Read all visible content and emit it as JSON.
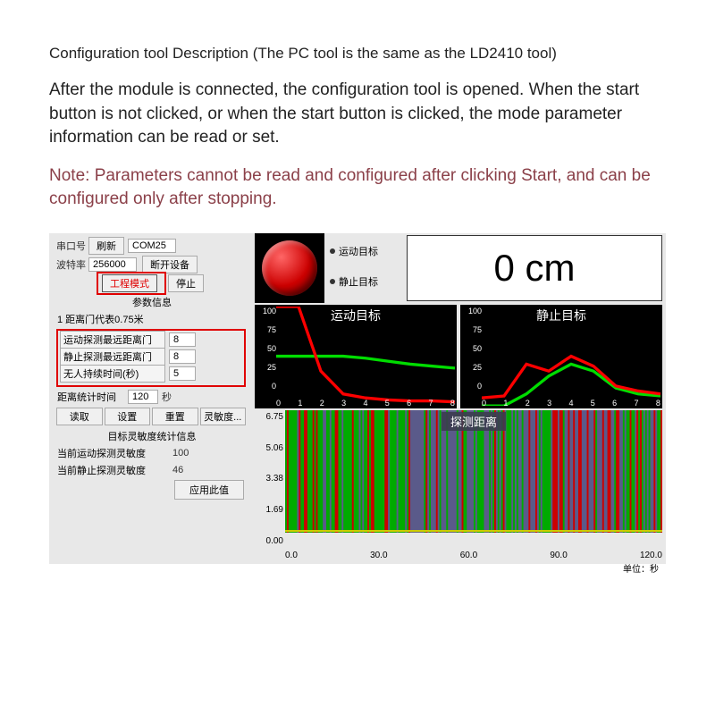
{
  "header": {
    "title": "Configuration tool Description (The PC tool is the same as the LD2410 tool)",
    "paragraph": "After the module is connected, the configuration tool is opened. When the start button is not clicked, or when the start button is clicked, the mode parameter information can be read or set.",
    "note": "Note: Parameters cannot be read and configured after clicking Start, and can be configured only after stopping."
  },
  "left": {
    "port_label": "串口号",
    "refresh_btn": "刷新",
    "port_value": "COM25",
    "baud_label": "波特率",
    "baud_value": "256000",
    "disconnect_btn": "断开设备",
    "eng_mode_btn": "工程模式",
    "stop_btn": "停止",
    "params_title": "参数信息",
    "gate_info": "1 距离门代表0.75米",
    "motion_max_gate_label": "运动探测最远距离门",
    "motion_max_gate_val": "8",
    "static_max_gate_label": "静止探测最远距离门",
    "static_max_gate_val": "8",
    "noone_time_label": "无人持续时间(秒)",
    "noone_time_val": "5",
    "dist_stat_time_label": "距离统计时间",
    "dist_stat_time_val": "120",
    "dist_stat_unit": "秒",
    "read_btn": "读取",
    "set_btn": "设置",
    "reset_btn": "重置",
    "sens_btn": "灵敏度...",
    "sens_title": "目标灵敏度统计信息",
    "motion_sens_label": "当前运动探测灵敏度",
    "motion_sens_val": "100",
    "static_sens_label": "当前静止探测灵敏度",
    "static_sens_val": "46",
    "apply_btn": "应用此值"
  },
  "right": {
    "moving_target_label": "运动目标",
    "static_target_label": "静止目标",
    "distance_value": "0 cm",
    "chart1": {
      "title": "运动目标",
      "y_ticks": [
        "100",
        "75",
        "50",
        "25",
        "0"
      ],
      "x_ticks": [
        "0",
        "1",
        "2",
        "3",
        "4",
        "5",
        "6",
        "7",
        "8"
      ],
      "red_line": [
        [
          0,
          100
        ],
        [
          1,
          100
        ],
        [
          2,
          35
        ],
        [
          3,
          12
        ],
        [
          4,
          8
        ],
        [
          5,
          6
        ],
        [
          6,
          5
        ],
        [
          7,
          5
        ],
        [
          8,
          4
        ]
      ],
      "green_line": [
        [
          0,
          50
        ],
        [
          1,
          50
        ],
        [
          2,
          50
        ],
        [
          3,
          50
        ],
        [
          4,
          48
        ],
        [
          5,
          45
        ],
        [
          6,
          42
        ],
        [
          7,
          40
        ],
        [
          8,
          38
        ]
      ],
      "colors": {
        "red": "#ff0000",
        "green": "#00dd00",
        "bg": "#000000",
        "text": "#ffffff"
      }
    },
    "chart2": {
      "title": "静止目标",
      "y_ticks": [
        "100",
        "75",
        "50",
        "25",
        "0"
      ],
      "x_ticks": [
        "0",
        "1",
        "2",
        "3",
        "4",
        "5",
        "6",
        "7",
        "8"
      ],
      "red_line": [
        [
          0,
          8
        ],
        [
          1,
          10
        ],
        [
          2,
          42
        ],
        [
          3,
          35
        ],
        [
          4,
          50
        ],
        [
          5,
          40
        ],
        [
          6,
          20
        ],
        [
          7,
          15
        ],
        [
          8,
          12
        ]
      ],
      "green_line": [
        [
          0,
          0
        ],
        [
          1,
          0
        ],
        [
          2,
          12
        ],
        [
          3,
          30
        ],
        [
          4,
          42
        ],
        [
          5,
          35
        ],
        [
          6,
          18
        ],
        [
          7,
          12
        ],
        [
          8,
          10
        ]
      ],
      "colors": {
        "red": "#ff0000",
        "green": "#00dd00",
        "bg": "#000000",
        "text": "#ffffff"
      }
    },
    "bigchart": {
      "title": "探测距离",
      "y_ticks": [
        "6.75",
        "5.06",
        "3.38",
        "1.69",
        "0.00"
      ],
      "x_ticks": [
        "0.0",
        "30.0",
        "60.0",
        "90.0",
        "120.0"
      ],
      "unit": "单位：秒",
      "bars_color_bg": "#5a5a8a",
      "bars_color_a": "#00aa00",
      "bars_color_b": "#cc0000",
      "y_line_color": "#cccc00"
    }
  }
}
